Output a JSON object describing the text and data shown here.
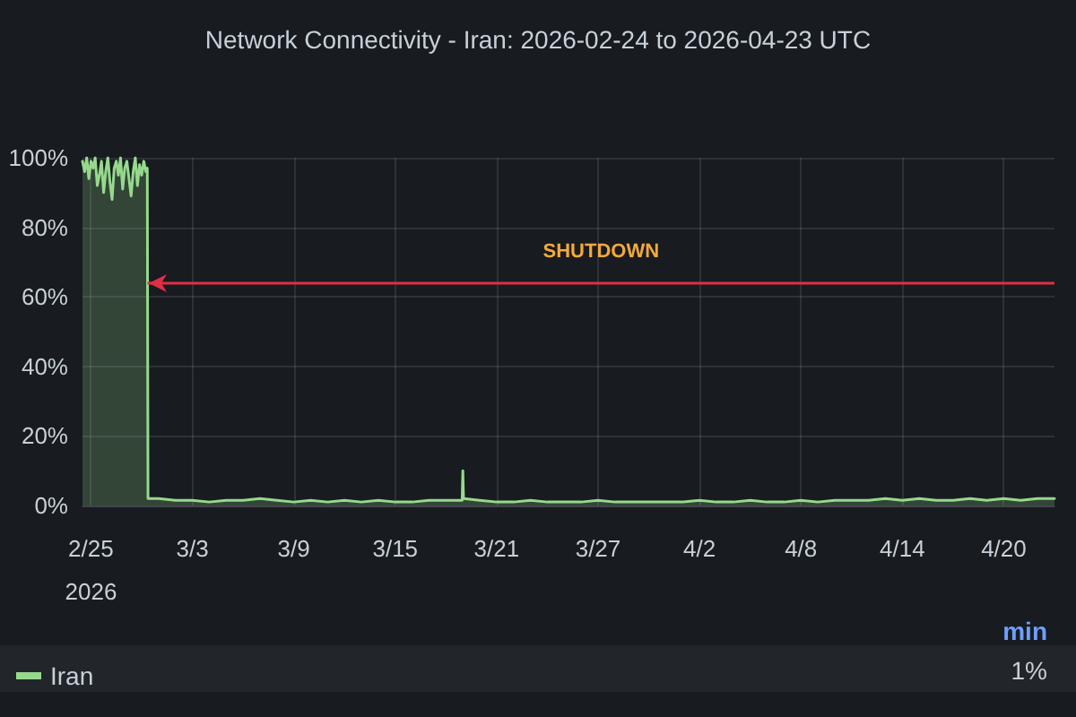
{
  "chart_data": {
    "type": "area",
    "title": "Network Connectivity - Iran: 2026-02-24 to 2026-04-23 UTC",
    "x": [
      "2026-02-24T12:00",
      "2026-02-24T15:00",
      "2026-02-24T18:00",
      "2026-02-24T21:00",
      "2026-02-25T00:00",
      "2026-02-25T03:00",
      "2026-02-25T06:00",
      "2026-02-25T09:00",
      "2026-02-25T12:00",
      "2026-02-25T15:00",
      "2026-02-25T18:00",
      "2026-02-25T21:00",
      "2026-02-26T00:00",
      "2026-02-26T03:00",
      "2026-02-26T06:00",
      "2026-02-26T09:00",
      "2026-02-26T12:00",
      "2026-02-26T15:00",
      "2026-02-26T18:00",
      "2026-02-26T21:00",
      "2026-02-27T00:00",
      "2026-02-27T03:00",
      "2026-02-27T06:00",
      "2026-02-27T09:00",
      "2026-02-27T12:00",
      "2026-02-27T15:00",
      "2026-02-27T18:00",
      "2026-02-27T21:00",
      "2026-02-28T00:00",
      "2026-02-28T03:00",
      "2026-02-28T06:00",
      "2026-02-28T08:00",
      "2026-02-28T09:00",
      "2026-03-01",
      "2026-03-02",
      "2026-03-03",
      "2026-03-04",
      "2026-03-05",
      "2026-03-06",
      "2026-03-07",
      "2026-03-08",
      "2026-03-09",
      "2026-03-10",
      "2026-03-11",
      "2026-03-12",
      "2026-03-13",
      "2026-03-14",
      "2026-03-15",
      "2026-03-16",
      "2026-03-17",
      "2026-03-18",
      "2026-03-18T23:00",
      "2026-03-19T00:00",
      "2026-03-19T01:00",
      "2026-03-20",
      "2026-03-21",
      "2026-03-22",
      "2026-03-23",
      "2026-03-24",
      "2026-03-25",
      "2026-03-26",
      "2026-03-27",
      "2026-03-28",
      "2026-03-29",
      "2026-03-30",
      "2026-03-31",
      "2026-04-01",
      "2026-04-02",
      "2026-04-03",
      "2026-04-04",
      "2026-04-05",
      "2026-04-06",
      "2026-04-07",
      "2026-04-08",
      "2026-04-09",
      "2026-04-10",
      "2026-04-11",
      "2026-04-12",
      "2026-04-13",
      "2026-04-14",
      "2026-04-15",
      "2026-04-16",
      "2026-04-17",
      "2026-04-18",
      "2026-04-19",
      "2026-04-20",
      "2026-04-21",
      "2026-04-22",
      "2026-04-23"
    ],
    "series": [
      {
        "name": "Iran",
        "color": "#96d98d",
        "values": [
          99,
          96,
          100,
          94,
          99,
          97,
          100,
          92,
          95,
          99,
          90,
          96,
          100,
          93,
          88,
          97,
          99,
          95,
          100,
          91,
          97,
          99,
          94,
          89,
          96,
          100,
          92,
          98,
          95,
          99,
          96,
          97,
          2,
          2,
          1.5,
          1.5,
          1,
          1.5,
          1.5,
          2,
          1.5,
          1,
          1.5,
          1,
          1.5,
          1,
          1.5,
          1,
          1,
          1.5,
          1.5,
          1.5,
          10,
          2,
          1.5,
          1,
          1,
          1.5,
          1,
          1,
          1,
          1.5,
          1,
          1,
          1,
          1,
          1,
          1.5,
          1,
          1,
          1.5,
          1,
          1,
          1.5,
          1,
          1.5,
          1.5,
          1.5,
          2,
          1.5,
          2,
          1.5,
          1.5,
          2,
          1.5,
          2,
          1.5,
          2,
          2
        ]
      }
    ],
    "xlim": [
      "2026-02-24T12:00",
      "2026-04-23"
    ],
    "xticks": [
      {
        "value": "2026-02-25",
        "label": "2/25\n2026"
      },
      {
        "value": "2026-03-03",
        "label": "3/3"
      },
      {
        "value": "2026-03-09",
        "label": "3/9"
      },
      {
        "value": "2026-03-15",
        "label": "3/15"
      },
      {
        "value": "2026-03-21",
        "label": "3/21"
      },
      {
        "value": "2026-03-27",
        "label": "3/27"
      },
      {
        "value": "2026-04-02",
        "label": "4/2"
      },
      {
        "value": "2026-04-08",
        "label": "4/8"
      },
      {
        "value": "2026-04-14",
        "label": "4/14"
      },
      {
        "value": "2026-04-20",
        "label": "4/20"
      }
    ],
    "ylim": [
      0,
      100
    ],
    "yticks": [
      {
        "value": 0,
        "label": "0%"
      },
      {
        "value": 20,
        "label": "20%"
      },
      {
        "value": 40,
        "label": "40%"
      },
      {
        "value": 60,
        "label": "60%"
      },
      {
        "value": 80,
        "label": "80%"
      },
      {
        "value": 100,
        "label": "100%"
      }
    ],
    "ref_lines": [
      {
        "axis": "y",
        "value": 64,
        "label": "SHUTDOWN",
        "color": "#e02f44"
      }
    ],
    "annotations": [
      "min",
      "1%"
    ],
    "grid": true,
    "legend": "bottom",
    "marker": "none",
    "line_style": "solid"
  }
}
